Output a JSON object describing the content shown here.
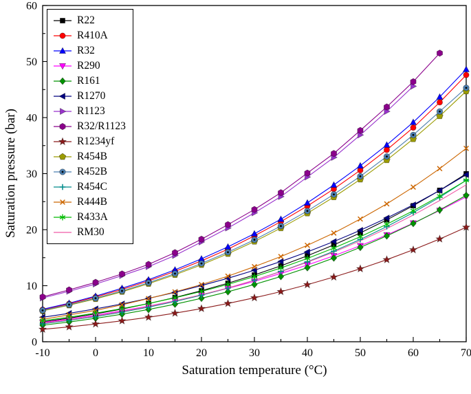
{
  "chart_data": {
    "type": "line",
    "title": "",
    "xlabel": "Saturation temperature (°C)",
    "ylabel": "Saturation pressure (bar)",
    "xlim": [
      -10,
      70
    ],
    "ylim": [
      0,
      60
    ],
    "x_major_ticks": [
      -10,
      0,
      10,
      20,
      30,
      40,
      50,
      60,
      70
    ],
    "y_major_ticks": [
      0,
      10,
      20,
      30,
      40,
      50,
      60
    ],
    "minor_step_x": 5,
    "minor_step_y": 5,
    "grid": false,
    "legend_position": "top-left-inside",
    "x": [
      -10,
      -5,
      0,
      5,
      10,
      15,
      20,
      25,
      30,
      35,
      40,
      45,
      50,
      55,
      60,
      65,
      70
    ],
    "series": [
      {
        "name": "R22",
        "color": "#000000",
        "marker": "square",
        "values": [
          3.55,
          4.21,
          4.98,
          5.84,
          6.81,
          7.89,
          9.1,
          10.44,
          11.92,
          13.55,
          15.34,
          17.29,
          19.42,
          21.74,
          24.27,
          27.02,
          29.98
        ]
      },
      {
        "name": "R410A",
        "color": "#FF0000",
        "marker": "circle",
        "values": [
          5.73,
          6.77,
          7.98,
          9.33,
          10.85,
          12.56,
          14.43,
          16.52,
          18.89,
          21.44,
          24.22,
          27.26,
          30.6,
          34.24,
          38.21,
          42.72,
          47.6
        ]
      },
      {
        "name": "R32",
        "color": "#0000FF",
        "marker": "triangle-up",
        "values": [
          5.79,
          6.88,
          8.13,
          9.54,
          11.07,
          12.84,
          14.8,
          16.93,
          19.27,
          21.87,
          24.78,
          27.97,
          31.4,
          35.12,
          39.17,
          43.68,
          48.6
        ]
      },
      {
        "name": "R290",
        "color": "#FF00FF",
        "marker": "triangle-down",
        "values": [
          3.45,
          4.05,
          4.74,
          5.51,
          6.36,
          7.31,
          8.36,
          9.52,
          10.79,
          12.18,
          13.69,
          15.34,
          17.13,
          19.06,
          21.16,
          23.42,
          25.86
        ]
      },
      {
        "name": "R161",
        "color": "#009200",
        "marker": "diamond",
        "values": [
          2.95,
          3.52,
          4.18,
          4.92,
          5.76,
          6.7,
          7.75,
          8.92,
          10.22,
          11.65,
          13.22,
          14.95,
          16.83,
          18.88,
          21.11,
          23.52,
          26.12
        ]
      },
      {
        "name": "R1270",
        "color": "#000080",
        "marker": "triangle-left",
        "values": [
          4.37,
          5.07,
          5.87,
          6.75,
          7.74,
          8.81,
          10.02,
          11.32,
          12.76,
          14.32,
          16.03,
          17.88,
          19.89,
          22.07,
          24.43,
          26.99,
          29.8
        ]
      },
      {
        "name": "R1123",
        "color": "#9932CC",
        "marker": "triangle-right",
        "values": [
          7.8,
          9.0,
          10.3,
          11.8,
          13.4,
          15.4,
          17.8,
          20.3,
          23.0,
          25.9,
          29.4,
          32.9,
          36.9,
          41.1,
          45.6
        ]
      },
      {
        "name": "R32/R1123",
        "color": "#8B008B",
        "marker": "hexagon",
        "values": [
          8.0,
          9.25,
          10.6,
          12.1,
          13.8,
          15.9,
          18.3,
          20.9,
          23.6,
          26.6,
          30.1,
          33.6,
          37.7,
          41.9,
          46.4,
          51.5
        ]
      },
      {
        "name": "R1234yf",
        "color": "#8B1A1A",
        "marker": "star",
        "values": [
          2.22,
          2.65,
          3.16,
          3.73,
          4.37,
          5.1,
          5.92,
          6.83,
          7.84,
          8.95,
          10.18,
          11.54,
          13.02,
          14.64,
          16.4,
          18.33,
          20.43
        ]
      },
      {
        "name": "R454B",
        "color": "#9B9B00",
        "marker": "pentagon",
        "values": [
          5.51,
          6.51,
          7.64,
          8.92,
          10.35,
          11.95,
          13.73,
          15.7,
          17.88,
          20.28,
          22.92,
          25.81,
          28.97,
          32.42,
          36.18,
          40.27,
          44.7
        ]
      },
      {
        "name": "R452B",
        "color": "#4C7FB0",
        "marker": "circle-dot",
        "values": [
          5.6,
          6.62,
          7.77,
          9.07,
          10.53,
          12.16,
          13.97,
          15.98,
          18.2,
          20.65,
          23.34,
          26.29,
          29.52,
          33.05,
          36.9,
          41.09,
          45.3
        ]
      },
      {
        "name": "R454C",
        "color": "#008B8B",
        "marker": "plus",
        "values": [
          3.2,
          3.8,
          4.49,
          5.28,
          6.17,
          7.18,
          8.31,
          9.57,
          10.98,
          12.54,
          14.27,
          16.17,
          18.26,
          20.55,
          23.05,
          25.78,
          28.8
        ]
      },
      {
        "name": "R444B",
        "color": "#CC6600",
        "marker": "x",
        "values": [
          4.0,
          4.8,
          5.6,
          6.6,
          7.7,
          8.9,
          10.2,
          11.7,
          13.4,
          15.2,
          17.2,
          19.4,
          21.9,
          24.6,
          27.6,
          30.9,
          34.5
        ]
      },
      {
        "name": "R433A",
        "color": "#00BB00",
        "marker": "asterisk",
        "values": [
          3.75,
          4.38,
          5.1,
          5.91,
          6.82,
          7.84,
          8.97,
          10.23,
          11.63,
          13.17,
          14.86,
          16.72,
          18.75,
          20.97,
          23.38,
          26.0,
          28.8
        ]
      },
      {
        "name": "RM30",
        "color": "#EF5AA7",
        "marker": "none",
        "values": [
          3.3,
          3.9,
          4.6,
          5.4,
          6.3,
          7.3,
          8.4,
          9.6,
          11.0,
          12.5,
          14.2,
          16.0,
          18.0,
          20.2,
          22.6,
          25.2,
          28.0
        ]
      }
    ]
  }
}
